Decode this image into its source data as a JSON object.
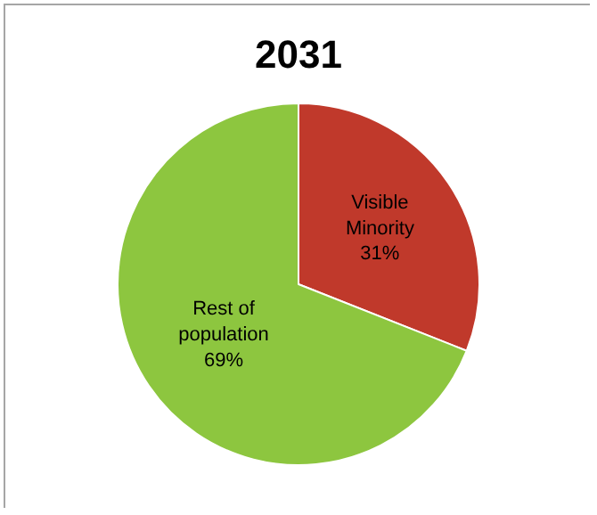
{
  "chart_data": {
    "type": "pie",
    "title": "2031",
    "categories": [
      "Visible Minority",
      "Rest of population"
    ],
    "values": [
      31,
      69
    ],
    "value_labels": [
      "31%",
      "69%"
    ],
    "colors": [
      "#c0392b",
      "#8dc63f"
    ],
    "legend": false
  }
}
